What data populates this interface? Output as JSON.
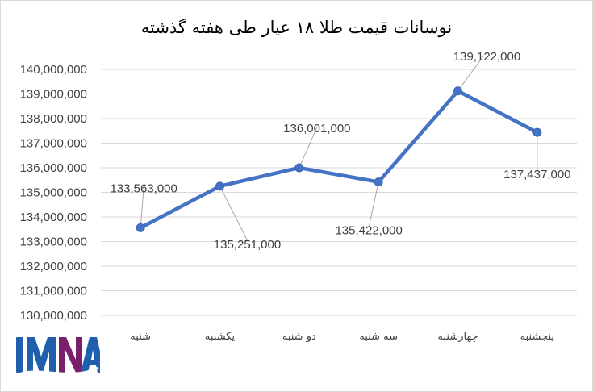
{
  "chart_data": {
    "type": "line",
    "title": "نوسانات قیمت طلا ۱۸ عیار طی هفته گذشته",
    "xlabel": "",
    "ylabel": "",
    "categories": [
      "شنبه",
      "یکشنبه",
      "دو شنبه",
      "سه شنبه",
      "چهارشنبه",
      "پنجشنبه"
    ],
    "series": [
      {
        "values": [
          133563000,
          135251000,
          136001000,
          135422000,
          139122000,
          137437000
        ],
        "color": "#4472c4"
      }
    ],
    "data_labels": [
      "133,563,000",
      "135,251,000",
      "136,001,000",
      "135,422,000",
      "139,122,000",
      "137,437,000"
    ],
    "yticks": [
      130000000,
      131000000,
      132000000,
      133000000,
      134000000,
      135000000,
      136000000,
      137000000,
      138000000,
      139000000,
      140000000
    ],
    "ytick_labels": [
      "130,000,000",
      "131,000,000",
      "132,000,000",
      "133,000,000",
      "134,000,000",
      "135,000,000",
      "136,000,000",
      "137,000,000",
      "138,000,000",
      "139,000,000",
      "140,000,000"
    ],
    "ylim": [
      130000000,
      140000000
    ],
    "grid": true,
    "legend": "none"
  },
  "logo": {
    "text": "IMNA",
    "color": "#1f5fae",
    "accent": "#7a1f6b"
  }
}
